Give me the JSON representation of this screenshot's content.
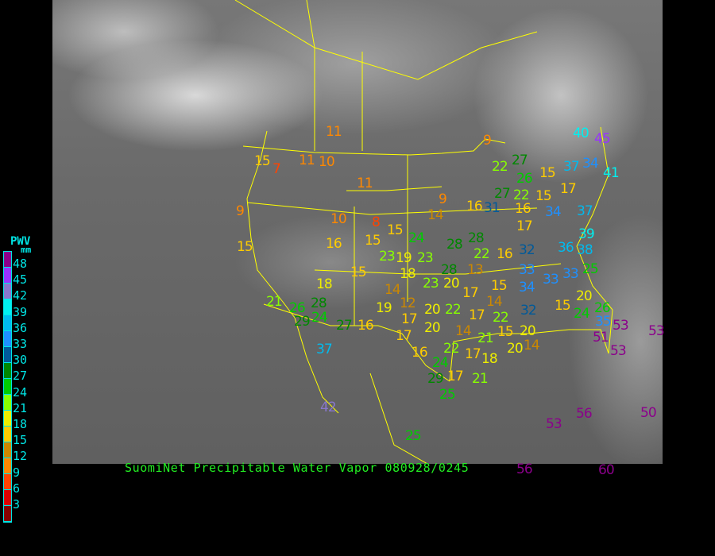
{
  "title": "SuomiNet Precipitable Water Vapor 080928/0245",
  "legend": {
    "heading": "PWV",
    "unit": "mm",
    "ticks": [
      "48",
      "45",
      "42",
      "39",
      "36",
      "33",
      "30",
      "27",
      "24",
      "21",
      "18",
      "15",
      "12",
      "9",
      "6",
      "3"
    ],
    "colors": [
      "#8b008b",
      "#9933ff",
      "#8877cc",
      "#00f0f0",
      "#00bbee",
      "#1e90ff",
      "#005a9a",
      "#008800",
      "#00cc00",
      "#88ff00",
      "#eeee00",
      "#ffcc00",
      "#cc8800",
      "#ff8800",
      "#ff4400",
      "#dd0000",
      "#880000"
    ]
  },
  "boundary_color": "#ffff00",
  "stations": [
    "11",
    "15",
    "7",
    "11",
    "10",
    "11",
    "9",
    "9",
    "40",
    "45",
    "22",
    "27",
    "26",
    "15",
    "22",
    "15",
    "37",
    "34",
    "41",
    "9",
    "14",
    "16",
    "31",
    "27",
    "16",
    "17",
    "34",
    "10",
    "8",
    "16",
    "15",
    "15",
    "24",
    "28",
    "28",
    "22",
    "37",
    "39",
    "17",
    "38",
    "36",
    "15",
    "23",
    "19",
    "23",
    "28",
    "16",
    "32",
    "25",
    "15",
    "18",
    "20",
    "13",
    "33",
    "33",
    "33",
    "18",
    "23",
    "17",
    "15",
    "34",
    "32",
    "14",
    "12",
    "20",
    "22",
    "17",
    "14",
    "22",
    "20",
    "21",
    "26",
    "28",
    "19",
    "17",
    "20",
    "14",
    "21",
    "17",
    "15",
    "26",
    "24",
    "35",
    "53",
    "51",
    "53",
    "29",
    "24",
    "27",
    "16",
    "17",
    "16",
    "22",
    "18",
    "15",
    "20",
    "20",
    "14",
    "37",
    "24",
    "17",
    "29",
    "21",
    "25",
    "42",
    "25",
    "53",
    "56",
    "50",
    "56",
    "60",
    "53"
  ]
}
